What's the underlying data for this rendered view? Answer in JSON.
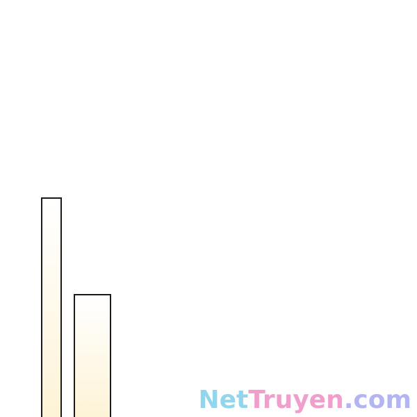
{
  "scene": {
    "background": "#ffffff",
    "frame_stroke": "#1a1a1a",
    "frame_fill_top": "#ffffff",
    "frame_fill_bottom": "#fdf3d6"
  },
  "watermark": {
    "parts": [
      {
        "text": "Net",
        "color": "#7fd0ea"
      },
      {
        "text": "Truyen",
        "color": "#ee8fc4"
      },
      {
        "text": ".com",
        "color": "#a6a8f0"
      }
    ]
  }
}
